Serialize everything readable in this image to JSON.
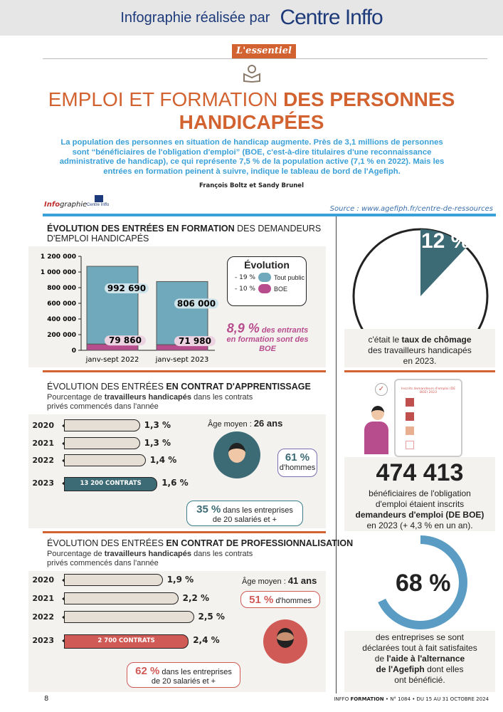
{
  "banner": {
    "text": "Infographie réalisée par",
    "logo": "Centre Inffo"
  },
  "tag": "L'essentiel",
  "title": {
    "line1_light": "EMPLOI ET FORMATION ",
    "line1_bold": "DES PERSONNES",
    "line2_bold": "HANDICAPÉES"
  },
  "intro": "La population des personnes en situation de handicap augmente. Près de 3,1 millions de personnes sont “bénéficiaires de l'obligation d'emploi” (BOE, c'est-à-dire titulaires d'une reconnaissance administrative de handicap), ce qui représente 7,5 % de la population active (7,1 % en 2022). Mais les entrées en formation peinent à suivre, indique le tableau de bord de l'Agefiph.",
  "authors": "François Boltz et Sandy Brunel",
  "infographie_label_bold": "Info",
  "infographie_label": "graphie",
  "infographie_logo": "Centre Inffo",
  "source": "Source : www.agefiph.fr/centre-de-ressources",
  "colors": {
    "orange": "#d2622f",
    "blue": "#3aa0d8",
    "teal": "#6fa9bb",
    "pink": "#b84d8e",
    "dark_teal": "#3d6b75",
    "red": "#d05a55"
  },
  "section1": {
    "title_bold": "ÉVOLUTION DES ENTRÉES EN FORMATION",
    "title_rest": " DES DEMANDEURS D'EMPLOI HANDICAPÉS"
  },
  "chart_data": {
    "type": "bar",
    "stacked": true,
    "categories": [
      "janv-sept 2022",
      "janv-sept 2023"
    ],
    "series": [
      {
        "name": "BOE",
        "values": [
          79860,
          71980
        ],
        "labels": [
          "79 860",
          "71 980"
        ]
      },
      {
        "name": "Tout public",
        "values": [
          992690,
          806000
        ],
        "labels": [
          "992 690",
          "806 000"
        ]
      }
    ],
    "yticks": [
      "0",
      "200 000",
      "400 000",
      "600 000",
      "800 000",
      "1 000 000",
      "1 200 000"
    ],
    "ylim": [
      0,
      1200000
    ],
    "legend": {
      "title": "Évolution",
      "items": [
        {
          "change": "- 19 %",
          "label": "Tout public"
        },
        {
          "change": "- 10 %",
          "label": "BOE"
        }
      ]
    },
    "annotation_big": "8,9 %",
    "annotation_rest": " des entrants en formation sont des BOE"
  },
  "section2": {
    "title_a": "ÉVOLUTION DES ENTRÉES ",
    "title_b": "EN CONTRAT D'APPRENTISSAGE",
    "sub_a": "Pourcentage de ",
    "sub_b": "travailleurs handicapés",
    "sub_c": " dans les contrats privés commencés dans l'année",
    "rows": [
      {
        "year": "2020",
        "value": 1.3,
        "label": "1,3 %"
      },
      {
        "year": "2021",
        "value": 1.3,
        "label": "1,3 %"
      },
      {
        "year": "2022",
        "value": 1.4,
        "label": "1,4 %"
      },
      {
        "year": "2023",
        "value": 1.6,
        "label": "1,6 %",
        "contracts": "13 200 CONTRATS"
      }
    ],
    "age_label": "Âge moyen : ",
    "age": "26 ans",
    "men_pct": "61 %",
    "men_label": "d'hommes",
    "firm_pct": "35 %",
    "firm_a": " dans les entreprises",
    "firm_b": "de 20 salariés et +"
  },
  "section3": {
    "title_a": "ÉVOLUTION DES ENTRÉES ",
    "title_b": "EN CONTRAT DE PROFESSIONNALISATION",
    "sub_a": "Pourcentage de ",
    "sub_b": "travailleurs handicapés",
    "sub_c": " dans les contrats privés commencés dans l'année",
    "rows": [
      {
        "year": "2020",
        "value": 1.9,
        "label": "1,9 %"
      },
      {
        "year": "2021",
        "value": 2.2,
        "label": "2,2 %"
      },
      {
        "year": "2022",
        "value": 2.5,
        "label": "2,5 %"
      },
      {
        "year": "2023",
        "value": 2.4,
        "label": "2,4 %",
        "contracts": "2 700 CONTRATS"
      }
    ],
    "age_label": "Âge moyen : ",
    "age": "41 ans",
    "men_pct": "51 %",
    "men_label": " d'hommes",
    "firm_pct": "62 %",
    "firm_a": " dans les entreprises",
    "firm_b": "de 20 salariés et +"
  },
  "right": {
    "unemployment": {
      "value": 12,
      "label": "12 %",
      "text_a": "c'était le ",
      "text_b": "taux de chômage",
      "text_c": "des travailleurs handicapés",
      "text_d": "en 2023."
    },
    "clipboard_title": "Inscrits demandeurs d'emploi (DE BOE) 2023",
    "boe": {
      "value": "474 413",
      "text_a": "bénéficiaires de l'obligation",
      "text_b": "d'emploi étaient inscrits",
      "text_c": "demandeurs d'emploi (DE BOE)",
      "text_d": "en 2023 (+ 4,3 % en un an)."
    },
    "satisfaction": {
      "value": 68,
      "label": "68 %",
      "t1": "des entreprises se sont",
      "t2": "déclarées tout à fait satisfaites",
      "t3a": "de ",
      "t3b": "l'aide à l'alternance",
      "t4": "de l'Agefiph",
      "t5": " dont elles",
      "t6": "ont bénéficié."
    }
  },
  "footer": {
    "page": "8",
    "pub_a": "INFFO ",
    "pub_b": "FORMATION",
    "pub_c": " • N° 1084 • DU 15 AU 31 OCTOBRE 2024"
  }
}
